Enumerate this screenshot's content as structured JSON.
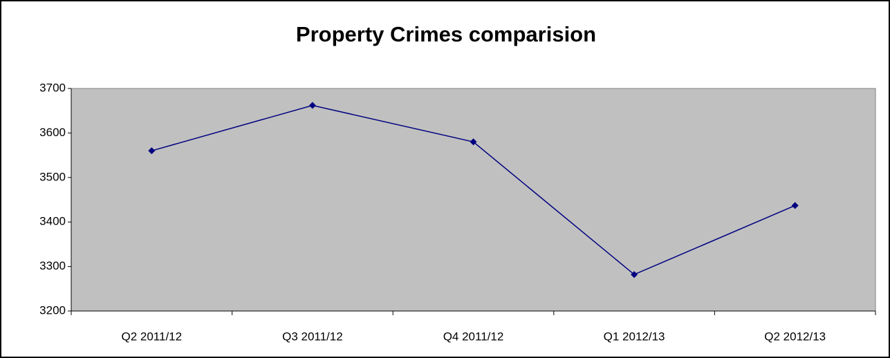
{
  "chart_data": {
    "type": "line",
    "title": "Property Crimes comparision",
    "categories": [
      "Q2 2011/12",
      "Q3 2011/12",
      "Q4 2011/12",
      "Q1 2012/13",
      "Q2 2012/13"
    ],
    "series": [
      {
        "name": "Property Crimes",
        "color": "#000080",
        "values": [
          3560,
          3662,
          3580,
          3282,
          3437
        ]
      }
    ],
    "ylim": [
      3200,
      3700
    ],
    "yticks": [
      3200,
      3300,
      3400,
      3500,
      3600,
      3700
    ],
    "grid": false,
    "plot_background": "#c0c0c0"
  }
}
